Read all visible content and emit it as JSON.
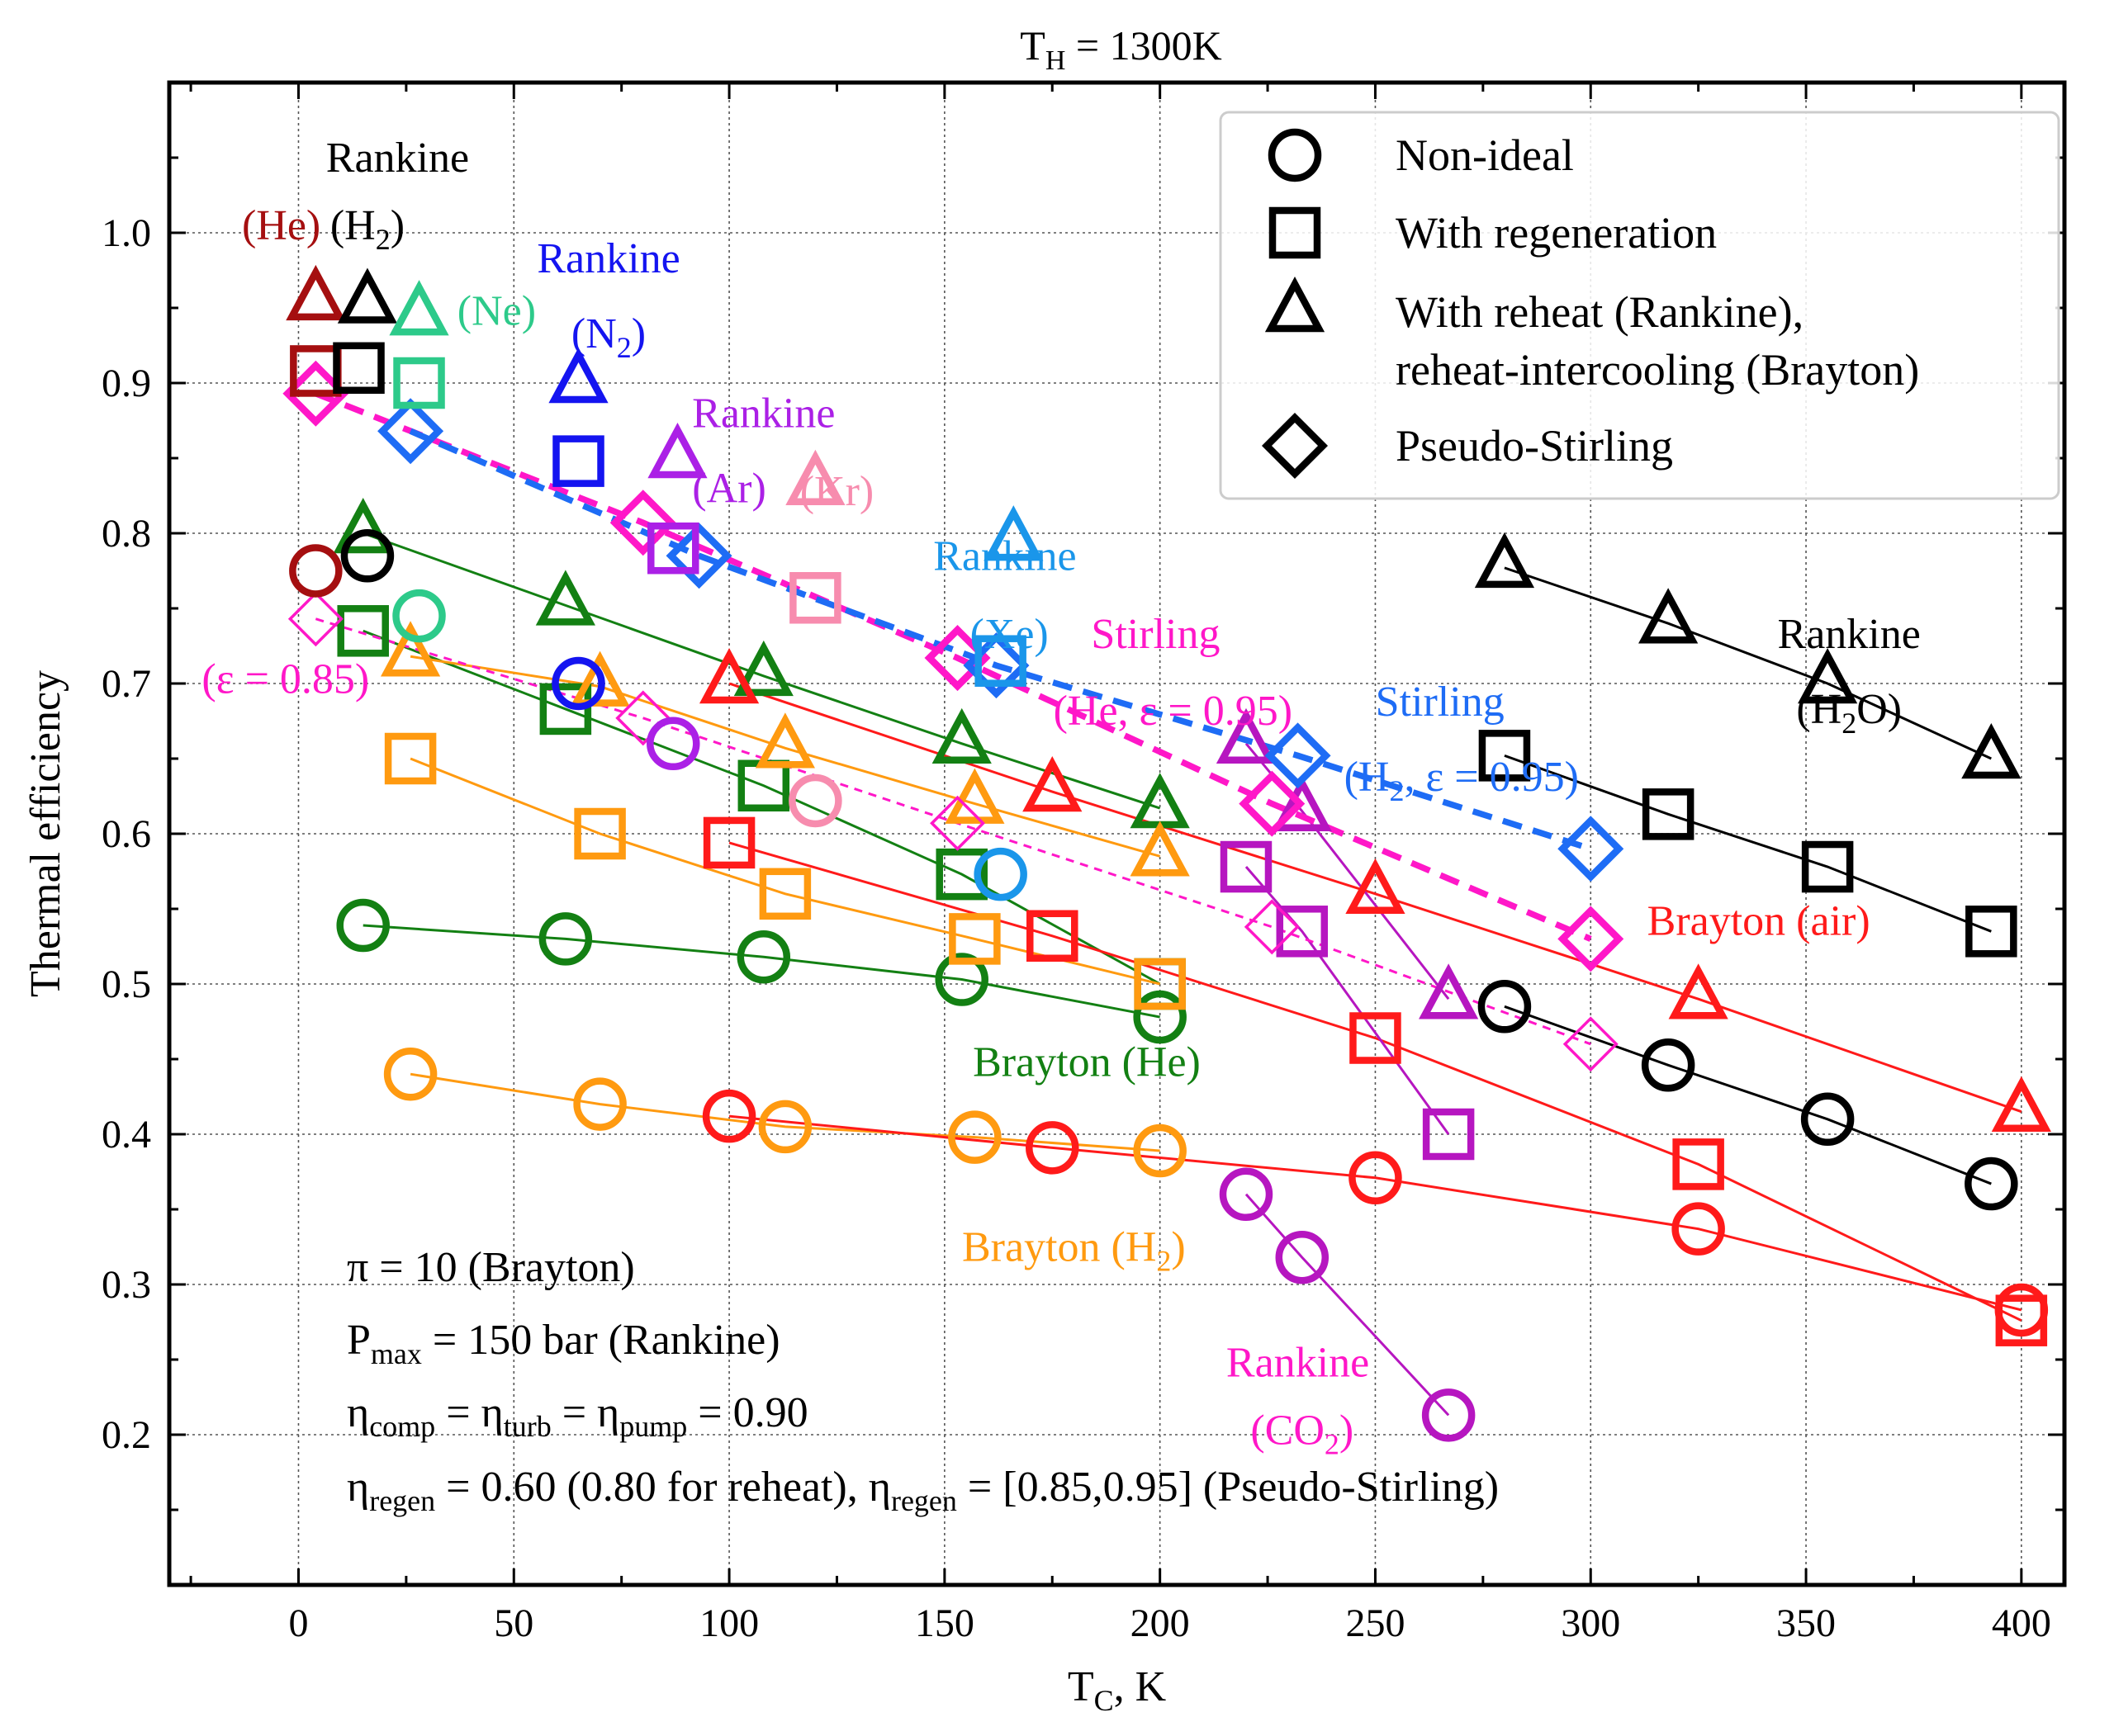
{
  "chart_data": {
    "type": "scatter",
    "title_main": "T",
    "title_sub": "H",
    "title_rest": " = 1300K",
    "xlabel_main": "T",
    "xlabel_sub": "C",
    "xlabel_rest": ", K",
    "ylabel": "Thermal efficiency",
    "xlim": [
      -30,
      410
    ],
    "ylim": [
      0.1,
      1.1
    ],
    "xticks": [
      0,
      50,
      100,
      150,
      200,
      250,
      300,
      350,
      400
    ],
    "yticks": [
      0.2,
      0.3,
      0.4,
      0.5,
      0.6,
      0.7,
      0.8,
      0.9,
      1.0
    ],
    "xtick_labels": [
      "0",
      "50",
      "100",
      "150",
      "200",
      "250",
      "300",
      "350",
      "400"
    ],
    "ytick_labels": [
      "0.2",
      "0.3",
      "0.4",
      "0.5",
      "0.6",
      "0.7",
      "0.8",
      "0.9",
      "1.0"
    ],
    "grid": true,
    "legend_position": "top-right",
    "legend": [
      {
        "marker": "circle",
        "label": "Non-ideal"
      },
      {
        "marker": "square",
        "label": "With regeneration"
      },
      {
        "marker": "triangle",
        "label": "With reheat (Rankine),"
      },
      {
        "marker": "none",
        "label": "reheat-intercooling (Brayton)"
      },
      {
        "marker": "diamond",
        "label": "Pseudo-Stirling"
      }
    ],
    "colors": {
      "green": "#138013",
      "orange": "#ff9a10",
      "red": "#ff1a1a",
      "black": "#000000",
      "purple": "#b616c0",
      "magenta": "#ff17c8",
      "blue": "#1e6cf5",
      "darkred": "#a50f10",
      "teal": "#2dca8a",
      "rblue": "#1414f0",
      "violet": "#ab20e6",
      "pink": "#f78cae",
      "sky": "#1a96ea"
    },
    "series": [
      {
        "group": "Brayton (He)",
        "marker": "circle",
        "color": "#138013",
        "line": "solid",
        "x": [
          15,
          62,
          108,
          154,
          200
        ],
        "y": [
          0.539,
          0.53,
          0.518,
          0.503,
          0.478
        ]
      },
      {
        "group": "Brayton (He)",
        "marker": "square",
        "color": "#138013",
        "line": "solid",
        "x": [
          15,
          62,
          108,
          154,
          200
        ],
        "y": [
          0.735,
          0.683,
          0.632,
          0.573,
          0.5
        ]
      },
      {
        "group": "Brayton (He)",
        "marker": "triangle",
        "color": "#138013",
        "line": "solid",
        "x": [
          15,
          62,
          108,
          154,
          200
        ],
        "y": [
          0.8,
          0.752,
          0.705,
          0.66,
          0.617
        ]
      },
      {
        "group": "Brayton (H2)",
        "marker": "circle",
        "color": "#ff9a10",
        "line": "solid",
        "x": [
          26,
          70,
          113,
          157,
          200
        ],
        "y": [
          0.44,
          0.42,
          0.405,
          0.398,
          0.389
        ]
      },
      {
        "group": "Brayton (H2)",
        "marker": "square",
        "color": "#ff9a10",
        "line": "solid",
        "x": [
          26,
          70,
          113,
          157,
          200
        ],
        "y": [
          0.65,
          0.6,
          0.56,
          0.53,
          0.5
        ]
      },
      {
        "group": "Brayton (H2)",
        "marker": "triangle",
        "color": "#ff9a10",
        "line": "solid",
        "x": [
          26,
          70,
          113,
          157,
          200
        ],
        "y": [
          0.718,
          0.698,
          0.657,
          0.62,
          0.585
        ]
      },
      {
        "group": "Brayton (air)",
        "marker": "circle",
        "color": "#ff1a1a",
        "line": "solid",
        "x": [
          100,
          175,
          250,
          325,
          400
        ],
        "y": [
          0.412,
          0.391,
          0.371,
          0.337,
          0.283
        ]
      },
      {
        "group": "Brayton (air)",
        "marker": "square",
        "color": "#ff1a1a",
        "line": "solid",
        "x": [
          100,
          175,
          250,
          325,
          400
        ],
        "y": [
          0.594,
          0.532,
          0.464,
          0.38,
          0.276
        ]
      },
      {
        "group": "Brayton (air)",
        "marker": "triangle",
        "color": "#ff1a1a",
        "line": "solid",
        "x": [
          100,
          175,
          250,
          325,
          400
        ],
        "y": [
          0.7,
          0.628,
          0.56,
          0.49,
          0.415
        ]
      },
      {
        "group": "Rankine (H2O)",
        "marker": "circle",
        "color": "#000000",
        "line": "solid",
        "x": [
          280,
          318,
          355,
          393
        ],
        "y": [
          0.485,
          0.446,
          0.41,
          0.367
        ]
      },
      {
        "group": "Rankine (H2O)",
        "marker": "square",
        "color": "#000000",
        "line": "solid",
        "x": [
          280,
          318,
          355,
          393
        ],
        "y": [
          0.652,
          0.613,
          0.578,
          0.535
        ]
      },
      {
        "group": "Rankine (H2O)",
        "marker": "triangle",
        "color": "#000000",
        "line": "solid",
        "x": [
          280,
          318,
          355,
          393
        ],
        "y": [
          0.777,
          0.74,
          0.7,
          0.65
        ]
      },
      {
        "group": "Rankine (CO2)",
        "marker": "circle",
        "color": "#b616c0",
        "line": "solid",
        "x": [
          220,
          233,
          267
        ],
        "y": [
          0.36,
          0.318,
          0.213
        ]
      },
      {
        "group": "Rankine (CO2)",
        "marker": "square",
        "color": "#b616c0",
        "line": "solid",
        "x": [
          220,
          233,
          267
        ],
        "y": [
          0.578,
          0.535,
          0.4
        ]
      },
      {
        "group": "Rankine (CO2)",
        "marker": "triangle",
        "color": "#b616c0",
        "line": "solid",
        "x": [
          220,
          233,
          267
        ],
        "y": [
          0.66,
          0.615,
          0.49
        ]
      },
      {
        "group": "Stirling (He, ε = 0.95)",
        "marker": "diamond",
        "color": "#ff17c8",
        "line": "dashed-thick",
        "x": [
          4,
          80,
          153,
          226,
          300
        ],
        "y": [
          0.893,
          0.807,
          0.717,
          0.62,
          0.53
        ]
      },
      {
        "group": "(ε = 0.85)",
        "marker": "diamond-small",
        "color": "#ff17c8",
        "line": "dashed-thin",
        "x": [
          4,
          80,
          153,
          226,
          300
        ],
        "y": [
          0.743,
          0.677,
          0.607,
          0.538,
          0.46
        ]
      },
      {
        "group": "Stirling (H2, ε = 0.95)",
        "marker": "diamond",
        "color": "#1e6cf5",
        "line": "dashed-thick",
        "x": [
          26,
          93,
          162,
          232,
          300
        ],
        "y": [
          0.868,
          0.785,
          0.712,
          0.652,
          0.59
        ]
      },
      {
        "group": "Rankine (He)",
        "marker": "circle",
        "color": "#a50f10",
        "line": "none",
        "x": [
          4
        ],
        "y": [
          0.775
        ]
      },
      {
        "group": "Rankine (He)",
        "marker": "square",
        "color": "#a50f10",
        "line": "none",
        "x": [
          4
        ],
        "y": [
          0.908
        ]
      },
      {
        "group": "Rankine (He)",
        "marker": "triangle",
        "color": "#a50f10",
        "line": "none",
        "x": [
          4
        ],
        "y": [
          0.955
        ]
      },
      {
        "group": "Rankine (H2)",
        "marker": "circle",
        "color": "#000000",
        "line": "none",
        "x": [
          16
        ],
        "y": [
          0.785
        ]
      },
      {
        "group": "Rankine (H2)",
        "marker": "square",
        "color": "#000000",
        "line": "none",
        "x": [
          14
        ],
        "y": [
          0.91
        ]
      },
      {
        "group": "Rankine (H2)",
        "marker": "triangle",
        "color": "#000000",
        "line": "none",
        "x": [
          16
        ],
        "y": [
          0.953
        ]
      },
      {
        "group": "Rankine (Ne)",
        "marker": "circle",
        "color": "#2dca8a",
        "line": "none",
        "x": [
          28
        ],
        "y": [
          0.745
        ]
      },
      {
        "group": "Rankine (Ne)",
        "marker": "square",
        "color": "#2dca8a",
        "line": "none",
        "x": [
          28
        ],
        "y": [
          0.9
        ]
      },
      {
        "group": "Rankine (Ne)",
        "marker": "triangle",
        "color": "#2dca8a",
        "line": "none",
        "x": [
          28
        ],
        "y": [
          0.945
        ]
      },
      {
        "group": "Rankine (N2)",
        "marker": "circle",
        "color": "#1414f0",
        "line": "none",
        "x": [
          65
        ],
        "y": [
          0.7
        ]
      },
      {
        "group": "Rankine (N2)",
        "marker": "square",
        "color": "#1414f0",
        "line": "none",
        "x": [
          65
        ],
        "y": [
          0.848
        ]
      },
      {
        "group": "Rankine (N2)",
        "marker": "triangle",
        "color": "#1414f0",
        "line": "none",
        "x": [
          65
        ],
        "y": [
          0.9
        ]
      },
      {
        "group": "Rankine (Ar)",
        "marker": "circle",
        "color": "#ab20e6",
        "line": "none",
        "x": [
          87
        ],
        "y": [
          0.66
        ]
      },
      {
        "group": "Rankine (Ar)",
        "marker": "square",
        "color": "#ab20e6",
        "line": "none",
        "x": [
          87
        ],
        "y": [
          0.79
        ]
      },
      {
        "group": "Rankine (Ar)",
        "marker": "triangle",
        "color": "#ab20e6",
        "line": "none",
        "x": [
          88
        ],
        "y": [
          0.85
        ]
      },
      {
        "group": "Rankine (Kr)",
        "marker": "circle",
        "color": "#f78cae",
        "line": "none",
        "x": [
          120
        ],
        "y": [
          0.622
        ]
      },
      {
        "group": "Rankine (Kr)",
        "marker": "square",
        "color": "#f78cae",
        "line": "none",
        "x": [
          120
        ],
        "y": [
          0.757
        ]
      },
      {
        "group": "Rankine (Kr)",
        "marker": "triangle",
        "color": "#f78cae",
        "line": "none",
        "x": [
          120
        ],
        "y": [
          0.832
        ]
      },
      {
        "group": "Rankine (Xe)",
        "marker": "circle",
        "color": "#1a96ea",
        "line": "none",
        "x": [
          163
        ],
        "y": [
          0.573
        ]
      },
      {
        "group": "Rankine (Xe)",
        "marker": "square",
        "color": "#1a96ea",
        "line": "none",
        "x": [
          163
        ],
        "y": [
          0.715
        ]
      },
      {
        "group": "Rankine (Xe)",
        "marker": "triangle",
        "color": "#1a96ea",
        "line": "none",
        "x": [
          166
        ],
        "y": [
          0.795
        ]
      }
    ],
    "annotations": [
      {
        "parts": [
          [
            "Rankine",
            "",
            ""
          ]
        ],
        "color": "#000000",
        "x": 23,
        "y": 1.05
      },
      {
        "parts": [
          [
            "(He)",
            "",
            ""
          ]
        ],
        "color": "#a50f10",
        "x": -4,
        "y": 1.005
      },
      {
        "parts": [
          [
            "(H",
            "2",
            ")"
          ]
        ],
        "color": "#000000",
        "x": 16,
        "y": 1.005
      },
      {
        "parts": [
          [
            "(Ne)",
            "",
            ""
          ]
        ],
        "color": "#2dca8a",
        "x": 46,
        "y": 0.948
      },
      {
        "parts": [
          [
            "Rankine",
            "",
            ""
          ]
        ],
        "color": "#1414f0",
        "x": 72,
        "y": 0.983
      },
      {
        "parts": [
          [
            "(N",
            "2",
            ")"
          ]
        ],
        "color": "#1414f0",
        "x": 72,
        "y": 0.933
      },
      {
        "parts": [
          [
            "Rankine",
            "",
            ""
          ]
        ],
        "color": "#ab20e6",
        "x": 108,
        "y": 0.88
      },
      {
        "parts": [
          [
            "(Ar)",
            "",
            ""
          ]
        ],
        "color": "#ab20e6",
        "x": 100,
        "y": 0.83
      },
      {
        "parts": [
          [
            "(Kr)",
            "",
            ""
          ]
        ],
        "color": "#f78cae",
        "x": 125,
        "y": 0.828
      },
      {
        "parts": [
          [
            "Rankine",
            "",
            ""
          ]
        ],
        "color": "#1a96ea",
        "x": 164,
        "y": 0.785
      },
      {
        "parts": [
          [
            "(Xe)",
            "",
            ""
          ]
        ],
        "color": "#1a96ea",
        "x": 165,
        "y": 0.733
      },
      {
        "parts": [
          [
            "Stirling",
            "",
            ""
          ]
        ],
        "color": "#ff17c8",
        "x": 199,
        "y": 0.733
      },
      {
        "parts": [
          [
            "(He, ε = 0.95)",
            "",
            ""
          ]
        ],
        "color": "#ff17c8",
        "x": 203,
        "y": 0.682
      },
      {
        "parts": [
          [
            "Stirling",
            "",
            ""
          ]
        ],
        "color": "#1e6cf5",
        "x": 265,
        "y": 0.688
      },
      {
        "parts": [
          [
            "(H",
            "2",
            ", ε = 0.95)"
          ]
        ],
        "color": "#1e6cf5",
        "x": 270,
        "y": 0.638
      },
      {
        "parts": [
          [
            "(ε = 0.85)",
            "",
            ""
          ]
        ],
        "color": "#ff17c8",
        "x": -3,
        "y": 0.703
      },
      {
        "parts": [
          [
            "Rankine",
            "",
            ""
          ]
        ],
        "color": "#000000",
        "x": 360,
        "y": 0.733
      },
      {
        "parts": [
          [
            "(H",
            "2",
            "O)"
          ]
        ],
        "color": "#000000",
        "x": 360,
        "y": 0.683
      },
      {
        "parts": [
          [
            "Brayton (air)",
            "",
            ""
          ]
        ],
        "color": "#ff1a1a",
        "x": 339,
        "y": 0.542
      },
      {
        "parts": [
          [
            "Brayton (He)",
            "",
            ""
          ]
        ],
        "color": "#138013",
        "x": 183,
        "y": 0.448
      },
      {
        "parts": [
          [
            "Brayton (H",
            "2",
            ")"
          ]
        ],
        "color": "#ff9a10",
        "x": 180,
        "y": 0.325
      },
      {
        "parts": [
          [
            "Rankine",
            "",
            ""
          ]
        ],
        "color": "#ff17c8",
        "x": 232,
        "y": 0.248
      },
      {
        "parts": [
          [
            "(CO",
            "2",
            ")"
          ]
        ],
        "color": "#ff17c8",
        "x": 233,
        "y": 0.203
      }
    ],
    "notes": [
      {
        "parts": [
          [
            "π = 10 (Brayton)",
            "",
            ""
          ]
        ]
      },
      {
        "parts": [
          [
            "P",
            "max",
            " = 150 bar (Rankine)"
          ]
        ]
      },
      {
        "parts": [
          [
            "η",
            "comp",
            " = "
          ],
          [
            "η",
            "turb",
            " = "
          ],
          [
            "η",
            "pump",
            " = 0.90"
          ]
        ]
      },
      {
        "parts": [
          [
            "η",
            "regen",
            " = 0.60 (0.80 for reheat), "
          ],
          [
            "η",
            "regen",
            " = [0.85,0.95] (Pseudo-Stirling)"
          ]
        ]
      }
    ]
  }
}
